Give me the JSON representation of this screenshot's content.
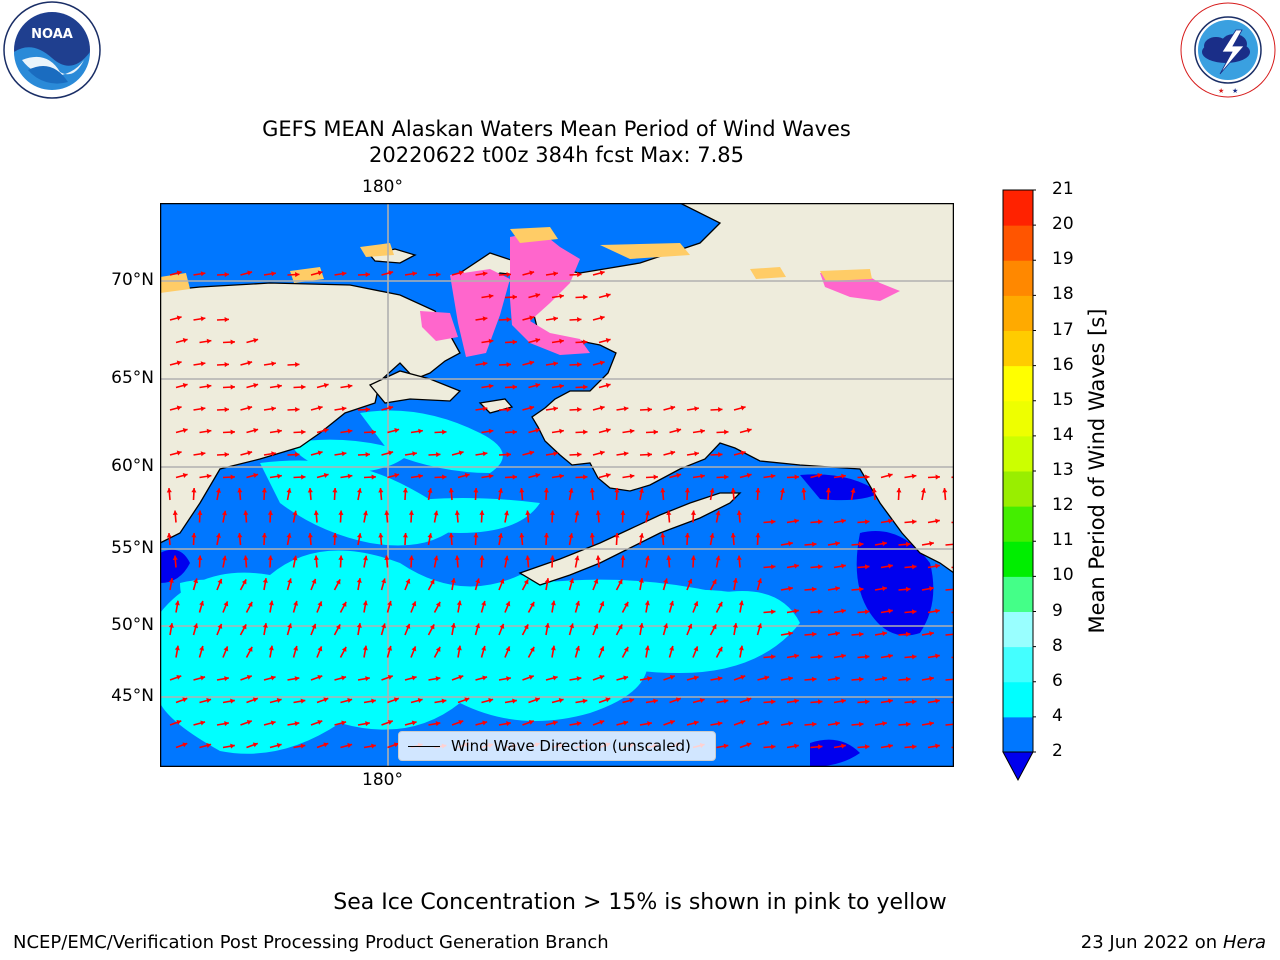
{
  "title_line1": "GEFS MEAN Alaskan Waters Mean Period of Wind Waves",
  "title_line2": "20220622 t00z 384h fcst   Max: 7.85",
  "logos": {
    "noaa_text": "NOAA",
    "noaa_ring": "NATIONAL OCEANIC AND ATMOSPHERIC ADMINISTRATION · U.S. DEPARTMENT OF COMMERCE",
    "nws_ring": "NATIONAL WEATHER SERVICE"
  },
  "map": {
    "lon_label_top": "180°",
    "lon_label_bottom": "180°",
    "lat_labels": [
      "70°N",
      "65°N",
      "60°N",
      "55°N",
      "50°N",
      "45°N"
    ],
    "legend_label": "Wind Wave Direction (unscaled)",
    "colors": {
      "land": "#eeecdc",
      "ocean_2_4": "#0077ff",
      "ocean_4_6": "#00ffff",
      "ocean_below_2": "#0000ee",
      "arrows": "#ff0000",
      "ice": "#ff66cc"
    }
  },
  "colorbar": {
    "label": "Mean Period of Wind Waves [s]",
    "ticks": [
      "2",
      "4",
      "6",
      "8",
      "9",
      "10",
      "11",
      "12",
      "13",
      "14",
      "15",
      "16",
      "17",
      "18",
      "19",
      "20",
      "21"
    ],
    "bin_colors": [
      "#0077ff",
      "#00ffff",
      "#44ffff",
      "#99ffff",
      "#44ff88",
      "#00ee00",
      "#44ee00",
      "#99ee00",
      "#ccff00",
      "#eeff00",
      "#ffff00",
      "#ffcc00",
      "#ffaa00",
      "#ff8800",
      "#ff5500",
      "#ff2200"
    ],
    "under_color": "#0000ee",
    "top_color": "#ff0000"
  },
  "note": "Sea Ice Concentration > 15% is shown in pink to yellow",
  "footer_left": "NCEP/EMC/Verification Post Processing Product Generation Branch",
  "footer_right_date": "23 Jun 2022 on",
  "footer_right_machine": "Hera"
}
